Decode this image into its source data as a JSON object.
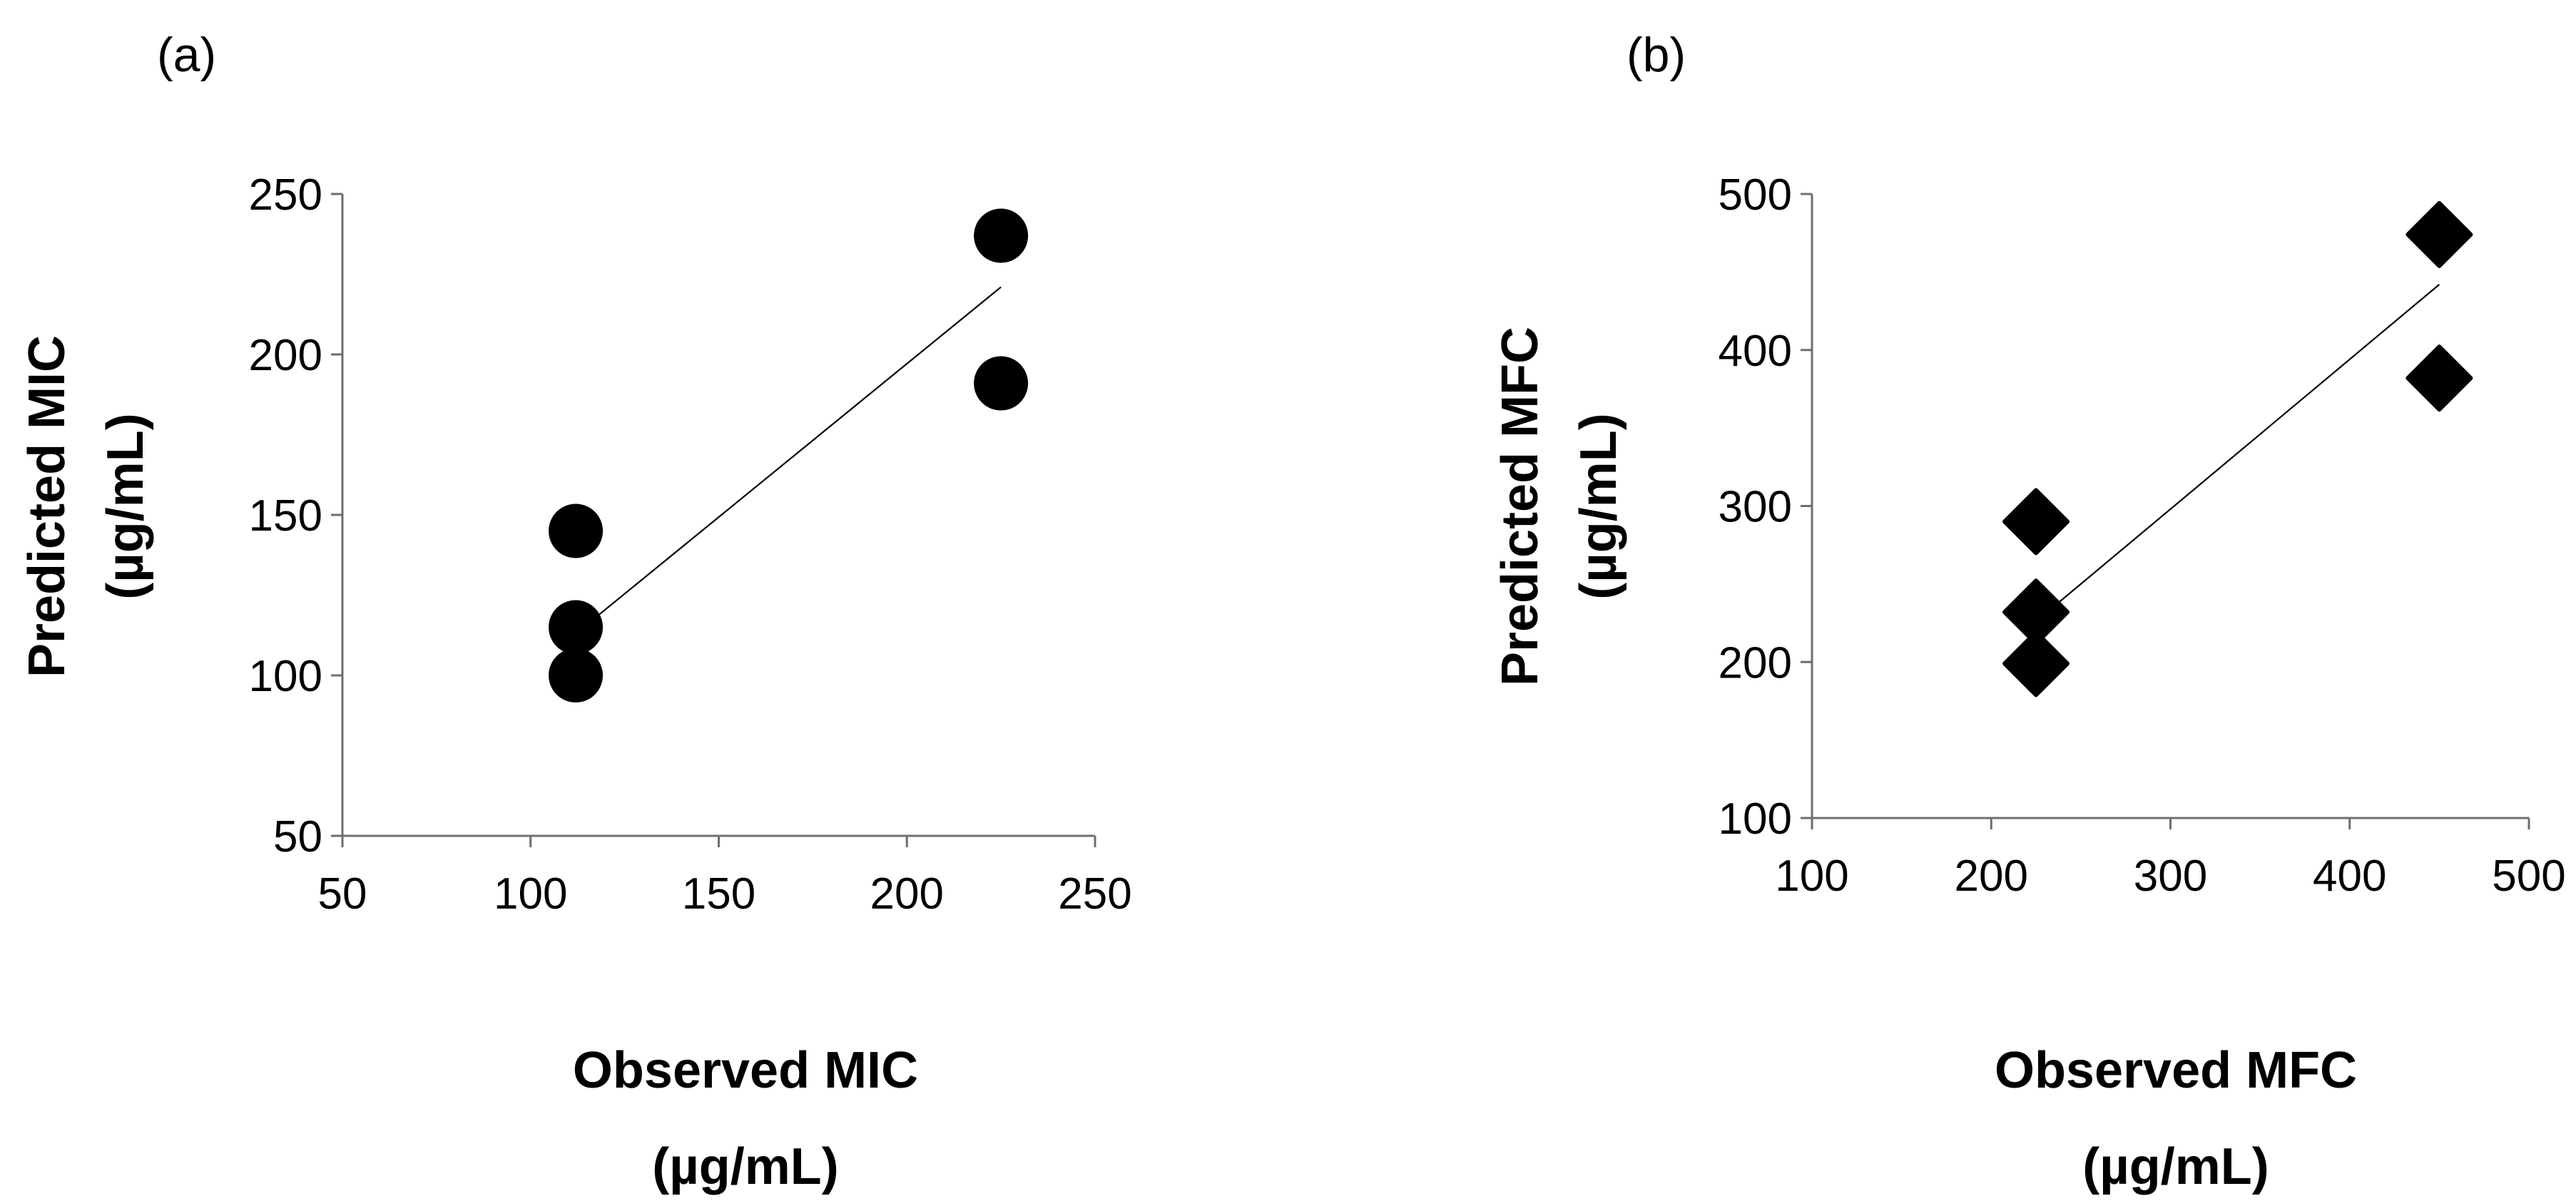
{
  "chart_data": [
    {
      "type": "scatter",
      "panel_label": "(a)",
      "xlabel_lines": [
        "Observed MIC",
        "(µg/mL)"
      ],
      "ylabel_lines": [
        "Predicted MIC",
        "(µg/mL)"
      ],
      "xlim": [
        50,
        250
      ],
      "ylim": [
        50,
        250
      ],
      "x_ticks": [
        50,
        100,
        150,
        200,
        250
      ],
      "y_ticks": [
        50,
        100,
        150,
        200,
        250
      ],
      "marker": "circle",
      "marker_color": "#000000",
      "points": [
        {
          "x": 112,
          "y": 145
        },
        {
          "x": 112,
          "y": 115
        },
        {
          "x": 112,
          "y": 100
        },
        {
          "x": 225,
          "y": 237
        },
        {
          "x": 225,
          "y": 191
        }
      ],
      "trendline": {
        "x": [
          112,
          225
        ],
        "y": [
          113,
          221
        ]
      }
    },
    {
      "type": "scatter",
      "panel_label": "(b)",
      "xlabel_lines": [
        "Observed MFC",
        "(µg/mL)"
      ],
      "ylabel_lines": [
        "Predicted MFC",
        "(µg/mL)"
      ],
      "xlim": [
        100,
        500
      ],
      "ylim": [
        100,
        500
      ],
      "x_ticks": [
        100,
        200,
        300,
        400,
        500
      ],
      "y_ticks": [
        100,
        200,
        300,
        400,
        500
      ],
      "marker": "diamond",
      "marker_color": "#000000",
      "points": [
        {
          "x": 225,
          "y": 290
        },
        {
          "x": 225,
          "y": 232
        },
        {
          "x": 225,
          "y": 199
        },
        {
          "x": 450,
          "y": 474
        },
        {
          "x": 450,
          "y": 382
        }
      ],
      "trendline": {
        "x": [
          225,
          450
        ],
        "y": [
          226,
          442
        ]
      }
    }
  ]
}
